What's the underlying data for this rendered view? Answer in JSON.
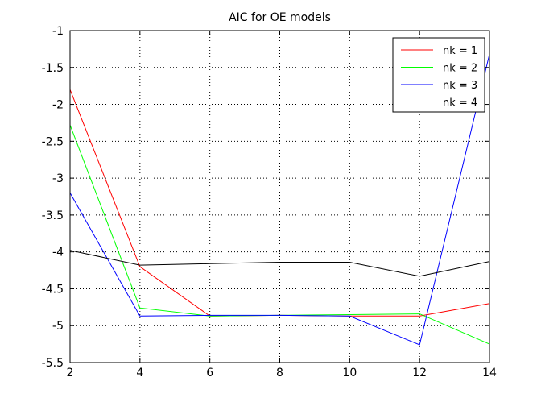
{
  "chart_data": {
    "type": "line",
    "title": "AIC for OE models",
    "xlabel": "",
    "ylabel": "",
    "x": [
      2,
      4,
      6,
      8,
      10,
      12,
      14
    ],
    "xlim": [
      2,
      14
    ],
    "ylim": [
      -5.5,
      -1
    ],
    "xticks": [
      2,
      4,
      6,
      8,
      10,
      12,
      14
    ],
    "yticks": [
      -5.5,
      -5,
      -4.5,
      -4,
      -3.5,
      -3,
      -2.5,
      -2,
      -1.5,
      -1
    ],
    "grid": true,
    "legend_position": "top-right",
    "series": [
      {
        "name": "nk = 1",
        "color": "#ff0000",
        "values": [
          -1.8,
          -4.2,
          -4.87,
          -4.86,
          -4.87,
          -4.87,
          -4.7
        ]
      },
      {
        "name": "nk = 2",
        "color": "#00ff00",
        "values": [
          -2.28,
          -4.76,
          -4.87,
          -4.86,
          -4.85,
          -4.84,
          -5.25
        ]
      },
      {
        "name": "nk = 3",
        "color": "#0000ff",
        "values": [
          -3.2,
          -4.87,
          -4.86,
          -4.86,
          -4.87,
          -5.26,
          -1.32
        ]
      },
      {
        "name": "nk = 4",
        "color": "#000000",
        "values": [
          -3.98,
          -4.18,
          -4.16,
          -4.14,
          -4.14,
          -4.33,
          -4.13
        ]
      }
    ]
  }
}
